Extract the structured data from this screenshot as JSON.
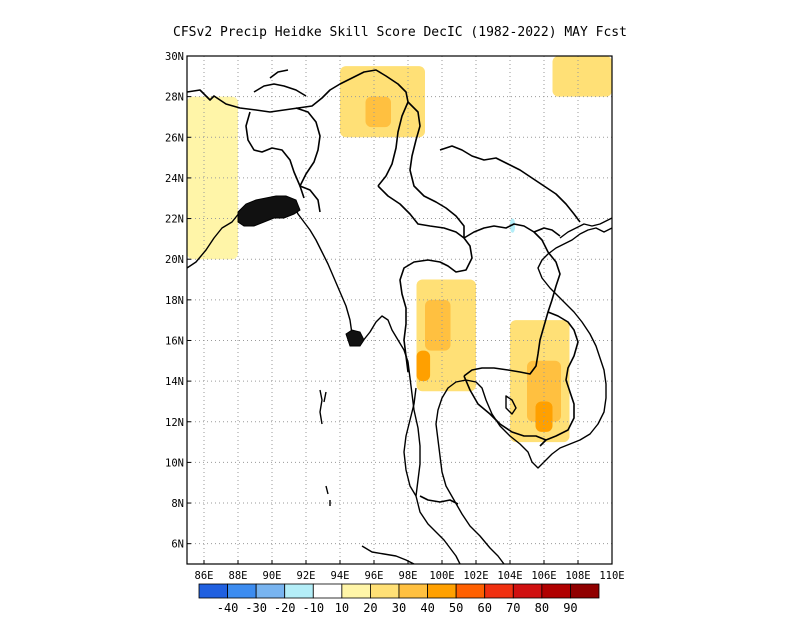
{
  "title": "CFSv2 Precip Heidke Skill Score DecIC (1982-2022) MAY Fcst",
  "map": {
    "lon_range": [
      85,
      110
    ],
    "lat_range": [
      5,
      30
    ],
    "x_ticks": [
      {
        "lon": 86,
        "label": "86E"
      },
      {
        "lon": 88,
        "label": "88E"
      },
      {
        "lon": 90,
        "label": "90E"
      },
      {
        "lon": 92,
        "label": "92E"
      },
      {
        "lon": 94,
        "label": "94E"
      },
      {
        "lon": 96,
        "label": "96E"
      },
      {
        "lon": 98,
        "label": "98E"
      },
      {
        "lon": 100,
        "label": "100E"
      },
      {
        "lon": 102,
        "label": "102E"
      },
      {
        "lon": 104,
        "label": "104E"
      },
      {
        "lon": 106,
        "label": "106E"
      },
      {
        "lon": 108,
        "label": "108E"
      },
      {
        "lon": 110,
        "label": "110E"
      }
    ],
    "y_ticks": [
      {
        "lat": 6,
        "label": "6N"
      },
      {
        "lat": 8,
        "label": "8N"
      },
      {
        "lat": 10,
        "label": "10N"
      },
      {
        "lat": 12,
        "label": "12N"
      },
      {
        "lat": 14,
        "label": "14N"
      },
      {
        "lat": 16,
        "label": "16N"
      },
      {
        "lat": 18,
        "label": "18N"
      },
      {
        "lat": 20,
        "label": "20N"
      },
      {
        "lat": 22,
        "label": "22N"
      },
      {
        "lat": 24,
        "label": "24N"
      },
      {
        "lat": 26,
        "label": "26N"
      },
      {
        "lat": 28,
        "label": "28N"
      },
      {
        "lat": 30,
        "label": "30N"
      }
    ],
    "grid": "dotted"
  },
  "colorbar": {
    "colors": [
      "#2060e0",
      "#3c8cf0",
      "#78b4f0",
      "#b4eef8",
      "#ffffff",
      "#fff5a8",
      "#ffe076",
      "#ffc040",
      "#ffa000",
      "#ff6000",
      "#f03010",
      "#d01010",
      "#b00000",
      "#900000"
    ],
    "labels": [
      "-40",
      "-30",
      "-20",
      "-10",
      "10",
      "20",
      "30",
      "40",
      "50",
      "60",
      "70",
      "80",
      "90"
    ]
  },
  "chart_data": {
    "type": "heatmap",
    "title": "CFSv2 Precip Heidke Skill Score DecIC (1982-2022) MAY Fcst",
    "xlabel": "",
    "ylabel": "",
    "x_range": [
      85,
      110
    ],
    "y_range": [
      5,
      30
    ],
    "levels": [
      -40,
      -30,
      -20,
      -10,
      10,
      20,
      30,
      40,
      50,
      60,
      70,
      80,
      90
    ],
    "regions": [
      {
        "lon": [
          94,
          99
        ],
        "lat": [
          26,
          29.5
        ],
        "value": 20
      },
      {
        "lon": [
          95.5,
          97
        ],
        "lat": [
          26.5,
          28
        ],
        "value": 30
      },
      {
        "lon": [
          98.5,
          102
        ],
        "lat": [
          13.5,
          19
        ],
        "value": 20
      },
      {
        "lon": [
          99,
          100.5
        ],
        "lat": [
          15.5,
          18
        ],
        "value": 30
      },
      {
        "lon": [
          98.5,
          99.3
        ],
        "lat": [
          14,
          15.5
        ],
        "value": 40
      },
      {
        "lon": [
          104,
          107.5
        ],
        "lat": [
          11,
          17
        ],
        "value": 20
      },
      {
        "lon": [
          105,
          107
        ],
        "lat": [
          12,
          15
        ],
        "value": 30
      },
      {
        "lon": [
          105.5,
          106.5
        ],
        "lat": [
          11.5,
          13
        ],
        "value": 40
      },
      {
        "lon": [
          85,
          88
        ],
        "lat": [
          20,
          28
        ],
        "value": 10
      },
      {
        "lon": [
          106.5,
          110
        ],
        "lat": [
          28,
          30
        ],
        "value": 20
      },
      {
        "lon": [
          101,
          103
        ],
        "lat": [
          26.5,
          28.5
        ],
        "value": -10
      },
      {
        "lon": [
          88.5,
          92
        ],
        "lat": [
          23,
          26.5
        ],
        "value": -10
      },
      {
        "lon": [
          103,
          104.5
        ],
        "lat": [
          20.5,
          22.5
        ],
        "value": -10
      },
      {
        "lon": [
          104,
          104.3
        ],
        "lat": [
          21.3,
          22
        ],
        "value": -20
      },
      {
        "lon": [
          107.5,
          110
        ],
        "lat": [
          26,
          27
        ],
        "value": -10
      }
    ]
  }
}
